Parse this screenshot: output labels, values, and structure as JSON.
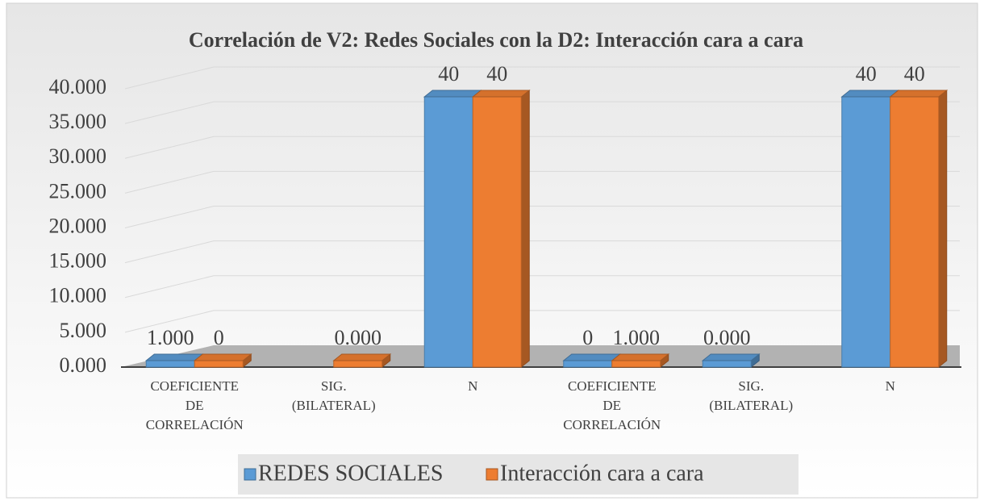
{
  "chart_data": {
    "type": "bar3d",
    "title": "Correlación de V2: Redes Sociales con la D2: Interacción cara a cara",
    "categories": [
      "COEFICIENTE DE CORRELACIÓN",
      "SIG. (BILATERAL)",
      "N",
      "COEFICIENTE DE CORRELACIÓN",
      "SIG. (BILATERAL)",
      "N"
    ],
    "series": [
      {
        "name": "REDES SOCIALES",
        "color": "#5b9bd5",
        "values": [
          1,
          null,
          40,
          0,
          0,
          40
        ],
        "value_labels": [
          "1.000",
          null,
          "40",
          "0",
          "0.000",
          "40"
        ]
      },
      {
        "name": "Interacción cara a cara",
        "color": "#ed7d31",
        "values": [
          0,
          0,
          40,
          1,
          null,
          40
        ],
        "value_labels": [
          "0",
          "0.000",
          "40",
          "1.000",
          null,
          "40"
        ]
      }
    ],
    "ylim": [
      0,
      40
    ],
    "yticks": [
      {
        "value": 0,
        "label": "0.000"
      },
      {
        "value": 5,
        "label": "5.000"
      },
      {
        "value": 10,
        "label": "10.000"
      },
      {
        "value": 15,
        "label": "15.000"
      },
      {
        "value": 20,
        "label": "20.000"
      },
      {
        "value": 25,
        "label": "25.000"
      },
      {
        "value": 30,
        "label": "30.000"
      },
      {
        "value": 35,
        "label": "35.000"
      },
      {
        "value": 40,
        "label": "40.000"
      }
    ],
    "grid": true,
    "legend": "bottom"
  }
}
